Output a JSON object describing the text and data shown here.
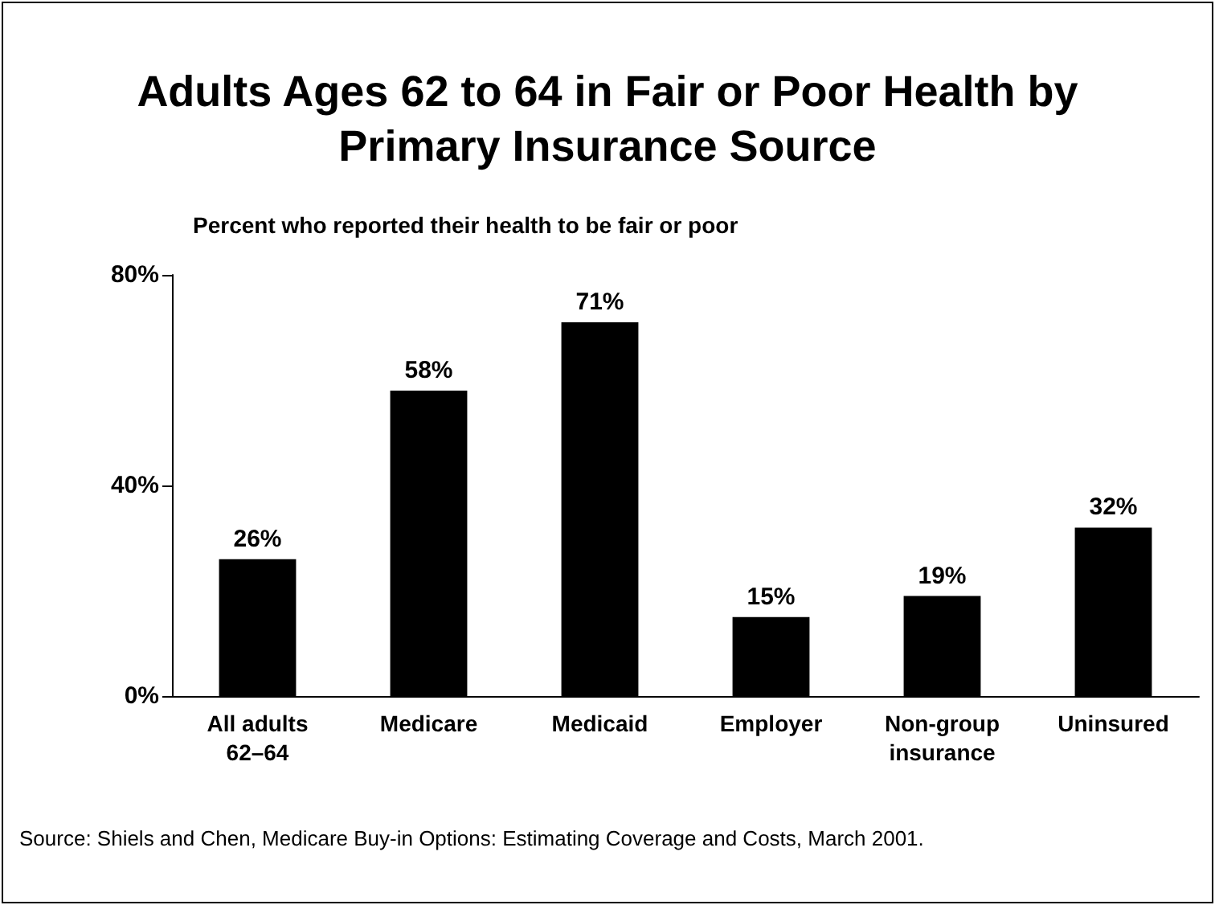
{
  "chart_data": {
    "type": "bar",
    "title": "Adults Ages 62 to 64 in Fair or Poor Health by Primary Insurance Source",
    "subtitle": "Percent who reported their health to be fair or poor",
    "categories": [
      "All adults\n62–64",
      "Medicare",
      "Medicaid",
      "Employer",
      "Non-group\ninsurance",
      "Uninsured"
    ],
    "values": [
      26,
      58,
      71,
      15,
      19,
      32
    ],
    "value_labels": [
      "26%",
      "58%",
      "71%",
      "15%",
      "19%",
      "32%"
    ],
    "color": "#000000",
    "ylim": [
      0,
      80
    ],
    "yticks": [
      {
        "value": 0,
        "label": "0%"
      },
      {
        "value": 40,
        "label": "40%"
      },
      {
        "value": 80,
        "label": "80%"
      }
    ],
    "grid": false,
    "annotations": [
      "Source: Shiels and Chen, Medicare Buy-in Options: Estimating Coverage and Costs, March 2001."
    ]
  }
}
